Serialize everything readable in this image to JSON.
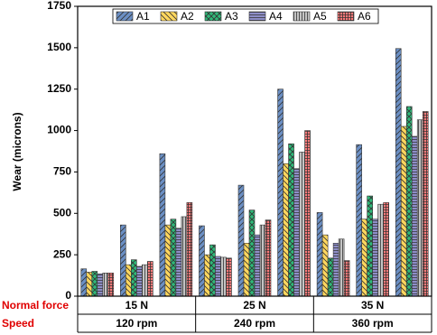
{
  "chart_data": {
    "type": "bar",
    "ylabel": "Wear (microns)",
    "categories": [
      null,
      null,
      null,
      null,
      null,
      null,
      null,
      null,
      null
    ],
    "series": [
      {
        "name": "A1",
        "color": "#6b8fc4",
        "pattern": "diagonal",
        "values": [
          165,
          430,
          860,
          425,
          670,
          1250,
          505,
          915,
          1495
        ]
      },
      {
        "name": "A2",
        "color": "#ffd75e",
        "pattern": "back-diagonal",
        "values": [
          145,
          190,
          430,
          250,
          320,
          800,
          370,
          465,
          1025
        ]
      },
      {
        "name": "A3",
        "color": "#2fb878",
        "pattern": "cross",
        "values": [
          150,
          220,
          465,
          310,
          520,
          920,
          230,
          605,
          1145
        ]
      },
      {
        "name": "A4",
        "color": "#8e8ec8",
        "pattern": "horizontal",
        "values": [
          135,
          180,
          410,
          240,
          370,
          770,
          320,
          465,
          965
        ]
      },
      {
        "name": "A5",
        "color": "#c4c4c4",
        "pattern": "vertical",
        "values": [
          140,
          190,
          480,
          235,
          430,
          870,
          345,
          555,
          1065
        ]
      },
      {
        "name": "A6",
        "color": "#ff7a7a",
        "pattern": "grid",
        "values": [
          140,
          210,
          565,
          230,
          460,
          1000,
          215,
          565,
          1115
        ]
      }
    ],
    "ylim": [
      0,
      1750
    ],
    "yticks": [
      0,
      250,
      500,
      750,
      1000,
      1250,
      1500,
      1750
    ],
    "legend": "top",
    "group_rows": [
      {
        "name": "Normal force",
        "labels": [
          "15 N",
          "25 N",
          "35 N"
        ]
      },
      {
        "name": "Speed",
        "labels": [
          "120 rpm",
          "240 rpm",
          "360 rpm"
        ]
      }
    ]
  }
}
